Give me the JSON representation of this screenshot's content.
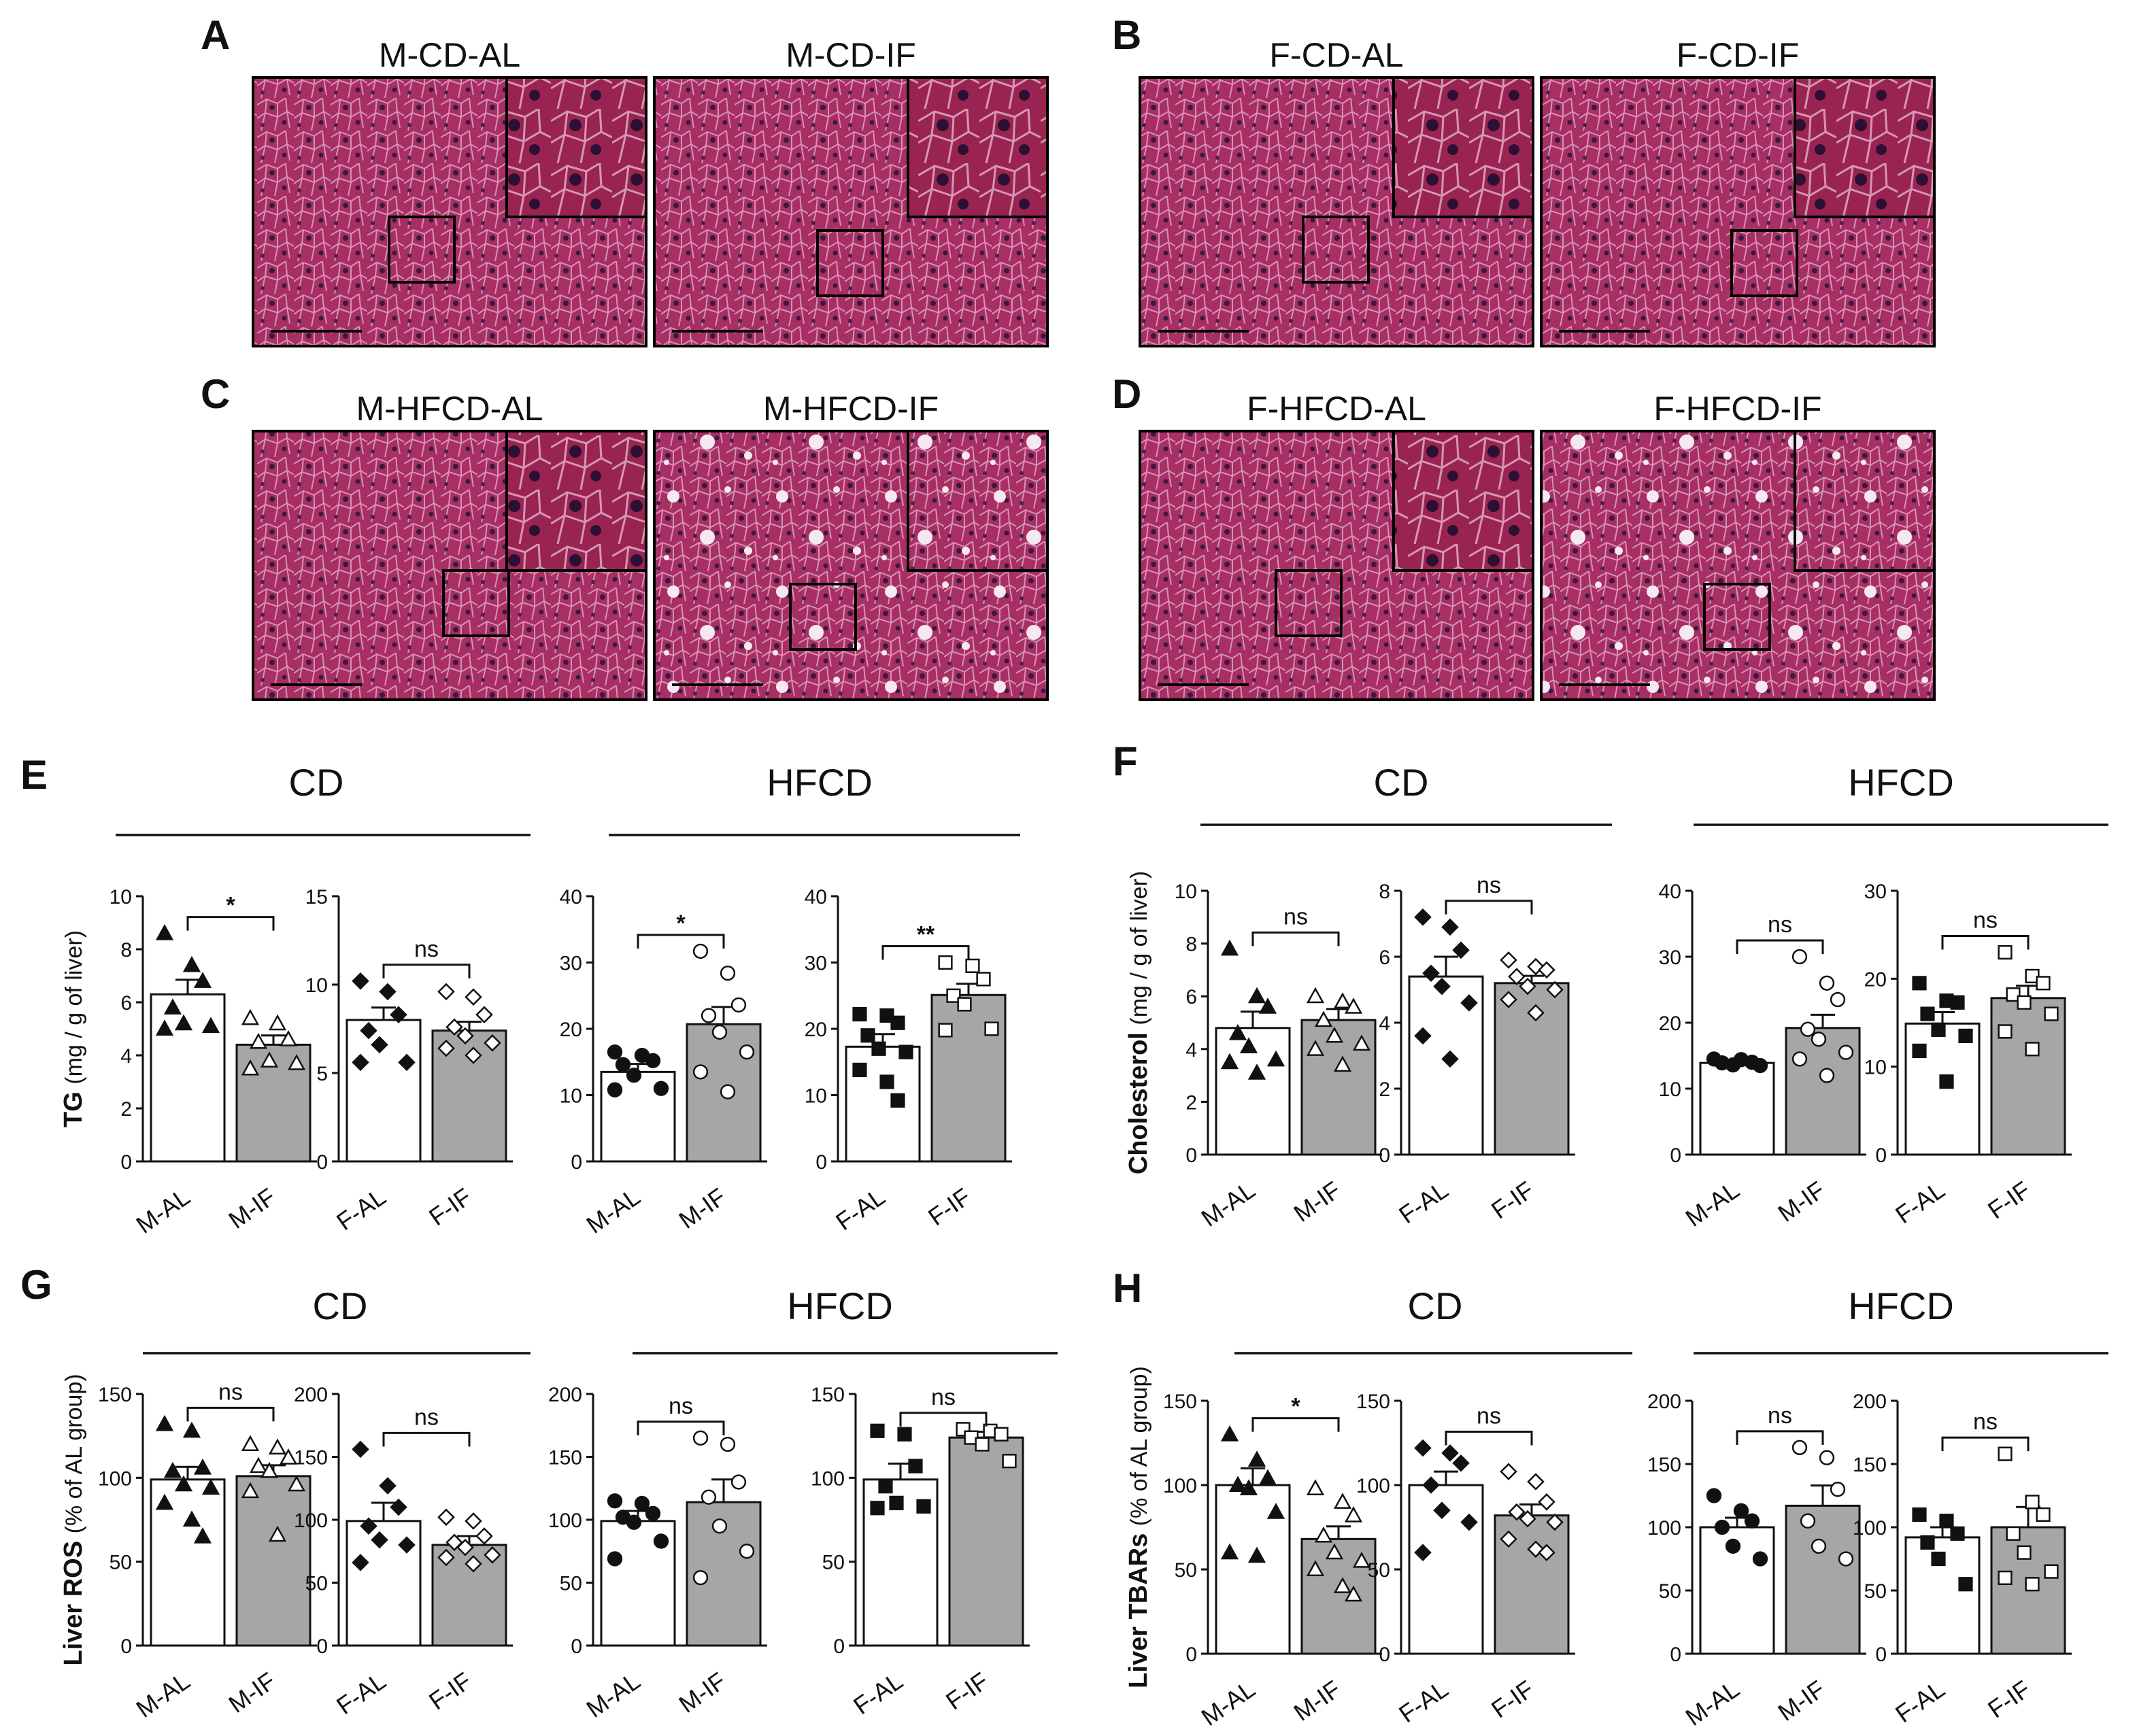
{
  "histology": {
    "panels": [
      {
        "letter": "A",
        "left_title": "M-CD-AL",
        "right_title": "M-CD-IF",
        "left_style": "plain",
        "right_style": "plain"
      },
      {
        "letter": "B",
        "left_title": "F-CD-AL",
        "right_title": "F-CD-IF",
        "left_style": "plain",
        "right_style": "plain"
      },
      {
        "letter": "C",
        "left_title": "M-HFCD-AL",
        "right_title": "M-HFCD-IF",
        "left_style": "plain",
        "right_style": "steatotic"
      },
      {
        "letter": "D",
        "left_title": "F-HFCD-AL",
        "right_title": "F-HFCD-IF",
        "left_style": "plain",
        "right_style": "steatotic"
      }
    ],
    "stain_color": "#b0306a"
  },
  "chart_data": [
    {
      "panel": "E",
      "type": "bar",
      "group": "CD",
      "ylabel_main": "TG",
      "ylabel_unit": "(mg / g of liver)",
      "categories": [
        "M-AL",
        "M-IF"
      ],
      "ylim": [
        0,
        10
      ],
      "yticks": [
        0,
        2,
        4,
        6,
        8,
        10
      ],
      "values": [
        6.3,
        4.4
      ],
      "sem": [
        0.55,
        0.35
      ],
      "points": [
        [
          8.6,
          7.4,
          6.8,
          5.8,
          5.2,
          5.1,
          5.0
        ],
        [
          5.4,
          5.2,
          4.6,
          4.5,
          3.8,
          3.7,
          3.5
        ]
      ],
      "markers": [
        "triangle-filled",
        "triangle-open"
      ],
      "significance": "*"
    },
    {
      "panel": "E",
      "type": "bar",
      "group": "CD",
      "categories": [
        "F-AL",
        "F-IF"
      ],
      "ylim": [
        0,
        15
      ],
      "yticks": [
        0,
        5,
        10,
        15
      ],
      "values": [
        8.0,
        7.4
      ],
      "sem": [
        0.7,
        0.5
      ],
      "points": [
        [
          10.2,
          9.6,
          8.3,
          7.4,
          6.6,
          5.6,
          5.6
        ],
        [
          9.6,
          9.3,
          8.3,
          7.6,
          7.1,
          6.7,
          6.4,
          6.0
        ]
      ],
      "markers": [
        "diamond-filled",
        "diamond-open"
      ],
      "significance": "ns"
    },
    {
      "panel": "E",
      "type": "bar",
      "group": "HFCD",
      "categories": [
        "M-AL",
        "M-IF"
      ],
      "ylim": [
        0,
        40
      ],
      "yticks": [
        0,
        10,
        20,
        30,
        40
      ],
      "values": [
        13.5,
        20.7
      ],
      "sem": [
        1.2,
        2.6
      ],
      "points": [
        [
          16.5,
          16.0,
          15.2,
          14.6,
          13.0,
          11.0,
          10.8
        ],
        [
          31.7,
          28.4,
          23.6,
          22.0,
          19.5,
          16.5,
          13.5,
          10.5
        ]
      ],
      "markers": [
        "circle-filled",
        "circle-open"
      ],
      "significance": "*"
    },
    {
      "panel": "E",
      "type": "bar",
      "group": "HFCD",
      "categories": [
        "F-AL",
        "F-IF"
      ],
      "ylim": [
        0,
        40
      ],
      "yticks": [
        0,
        10,
        20,
        30,
        40
      ],
      "values": [
        17.3,
        25.1
      ],
      "sem": [
        1.9,
        1.7
      ],
      "points": [
        [
          22.2,
          22.0,
          20.9,
          19.0,
          17.0,
          16.5,
          13.8,
          12.0,
          9.2
        ],
        [
          30.0,
          29.5,
          27.5,
          25.0,
          23.7,
          20.0,
          19.8
        ]
      ],
      "markers": [
        "square-filled",
        "square-open"
      ],
      "significance": "**"
    },
    {
      "panel": "F",
      "type": "bar",
      "group": "CD",
      "ylabel_main": "Cholesterol",
      "ylabel_unit": "(mg / g of liver)",
      "categories": [
        "M-AL",
        "M-IF"
      ],
      "ylim": [
        0,
        10
      ],
      "yticks": [
        0,
        2,
        4,
        6,
        8,
        10
      ],
      "values": [
        4.8,
        5.1
      ],
      "sem": [
        0.62,
        0.42
      ],
      "points": [
        [
          7.8,
          6.0,
          5.6,
          4.6,
          4.1,
          3.6,
          3.5,
          3.1
        ],
        [
          6.0,
          5.8,
          5.6,
          5.1,
          4.5,
          4.2,
          4.0,
          3.4
        ]
      ],
      "markers": [
        "triangle-filled",
        "triangle-open"
      ],
      "significance": "ns"
    },
    {
      "panel": "F",
      "type": "bar",
      "group": "CD",
      "categories": [
        "F-AL",
        "F-IF"
      ],
      "ylim": [
        0,
        8
      ],
      "yticks": [
        0,
        2,
        4,
        6,
        8
      ],
      "values": [
        5.4,
        5.2
      ],
      "sem": [
        0.6,
        0.22
      ],
      "points": [
        [
          7.2,
          6.9,
          6.2,
          5.5,
          5.1,
          4.6,
          3.6,
          2.9
        ],
        [
          5.9,
          5.7,
          5.6,
          5.4,
          5.1,
          5.0,
          4.7,
          4.3
        ]
      ],
      "markers": [
        "diamond-filled",
        "diamond-open"
      ],
      "significance": "ns"
    },
    {
      "panel": "F",
      "type": "bar",
      "group": "HFCD",
      "categories": [
        "M-AL",
        "M-IF"
      ],
      "ylim": [
        0,
        40
      ],
      "yticks": [
        0,
        10,
        20,
        30,
        40
      ],
      "values": [
        13.9,
        19.2
      ],
      "sem": [
        0.4,
        2.0
      ],
      "points": [
        [
          14.5,
          14.4,
          14.0,
          13.9,
          13.6,
          13.5
        ],
        [
          30.0,
          26.0,
          23.5,
          19.0,
          17.5,
          15.5,
          14.5,
          12.0
        ]
      ],
      "markers": [
        "circle-filled",
        "circle-open"
      ],
      "significance": "ns"
    },
    {
      "panel": "F",
      "type": "bar",
      "group": "HFCD",
      "categories": [
        "F-AL",
        "F-IF"
      ],
      "ylim": [
        0,
        30
      ],
      "yticks": [
        0,
        10,
        20,
        30
      ],
      "values": [
        14.9,
        17.8
      ],
      "sem": [
        1.3,
        1.4
      ],
      "points": [
        [
          19.5,
          17.5,
          17.3,
          16.0,
          14.2,
          13.5,
          11.8,
          8.3
        ],
        [
          23.0,
          20.3,
          19.5,
          18.2,
          17.3,
          16.0,
          14.0,
          12.0
        ]
      ],
      "markers": [
        "square-filled",
        "square-open"
      ],
      "significance": "ns"
    },
    {
      "panel": "G",
      "type": "bar",
      "group": "CD",
      "ylabel_main": "Liver ROS",
      "ylabel_unit": "(% of AL group)",
      "categories": [
        "M-AL",
        "M-IF"
      ],
      "ylim": [
        0,
        150
      ],
      "yticks": [
        0,
        50,
        100,
        150
      ],
      "values": [
        99,
        101
      ],
      "sem": [
        7.5,
        6.5
      ],
      "points": [
        [
          132,
          128,
          106,
          104,
          96,
          94,
          85,
          75,
          65
        ],
        [
          120,
          118,
          112,
          107,
          104,
          96,
          92,
          66
        ]
      ],
      "markers": [
        "triangle-filled",
        "triangle-open"
      ],
      "significance": "ns"
    },
    {
      "panel": "G",
      "type": "bar",
      "group": "CD",
      "categories": [
        "F-AL",
        "F-IF"
      ],
      "ylim": [
        0,
        200
      ],
      "yticks": [
        0,
        50,
        100,
        150,
        200
      ],
      "values": [
        99,
        80
      ],
      "sem": [
        14.5,
        7.0
      ],
      "points": [
        [
          156,
          127,
          110,
          95,
          84,
          80,
          66
        ],
        [
          102,
          99,
          87,
          82,
          78,
          72,
          70,
          65
        ]
      ],
      "markers": [
        "diamond-filled",
        "diamond-open"
      ],
      "significance": "ns"
    },
    {
      "panel": "G",
      "type": "bar",
      "group": "HFCD",
      "categories": [
        "M-AL",
        "M-IF"
      ],
      "ylim": [
        0,
        200
      ],
      "yticks": [
        0,
        50,
        100,
        150,
        200
      ],
      "values": [
        99,
        114
      ],
      "sem": [
        8.0,
        18.0
      ],
      "points": [
        [
          115,
          113,
          105,
          102,
          98,
          83,
          69
        ],
        [
          165,
          160,
          130,
          118,
          95,
          75,
          54
        ]
      ],
      "markers": [
        "circle-filled",
        "circle-open"
      ],
      "significance": "ns"
    },
    {
      "panel": "G",
      "type": "bar",
      "group": "HFCD",
      "categories": [
        "F-AL",
        "F-IF"
      ],
      "ylim": [
        0,
        150
      ],
      "yticks": [
        0,
        50,
        100,
        150
      ],
      "values": [
        99,
        124
      ],
      "sem": [
        9.5,
        3.5
      ],
      "points": [
        [
          128,
          126,
          107,
          95,
          85,
          83,
          82
        ],
        [
          129,
          128,
          126,
          124,
          120,
          110
        ]
      ],
      "markers": [
        "square-filled",
        "square-open"
      ],
      "significance": "ns"
    },
    {
      "panel": "H",
      "type": "bar",
      "group": "CD",
      "ylabel_main": "Liver TBARs",
      "ylabel_unit": "(% of AL group)",
      "categories": [
        "M-AL",
        "M-IF"
      ],
      "ylim": [
        0,
        150
      ],
      "yticks": [
        0,
        50,
        100,
        150
      ],
      "values": [
        100,
        68
      ],
      "sem": [
        10.0,
        7.5
      ],
      "points": [
        [
          130,
          115,
          104,
          100,
          98,
          84,
          60,
          58
        ],
        [
          98,
          90,
          82,
          70,
          60,
          55,
          50,
          40,
          35
        ]
      ],
      "markers": [
        "triangle-filled",
        "triangle-open"
      ],
      "significance": "*"
    },
    {
      "panel": "H",
      "type": "bar",
      "group": "CD",
      "categories": [
        "F-AL",
        "F-IF"
      ],
      "ylim": [
        0,
        150
      ],
      "yticks": [
        0,
        50,
        100,
        150
      ],
      "values": [
        100,
        82
      ],
      "sem": [
        8.0,
        6.5
      ],
      "points": [
        [
          122,
          119,
          113,
          100,
          85,
          78,
          60
        ],
        [
          108,
          102,
          90,
          84,
          80,
          78,
          68,
          62,
          60
        ]
      ],
      "markers": [
        "diamond-filled",
        "diamond-open"
      ],
      "significance": "ns"
    },
    {
      "panel": "H",
      "type": "bar",
      "group": "HFCD",
      "categories": [
        "M-AL",
        "M-IF"
      ],
      "ylim": [
        0,
        200
      ],
      "yticks": [
        0,
        50,
        100,
        150,
        200
      ],
      "values": [
        100,
        117
      ],
      "sem": [
        7.5,
        16.0
      ],
      "points": [
        [
          125,
          113,
          105,
          100,
          85,
          75
        ],
        [
          163,
          155,
          130,
          105,
          85,
          75
        ]
      ],
      "markers": [
        "circle-filled",
        "circle-open"
      ],
      "significance": "ns"
    },
    {
      "panel": "H",
      "type": "bar",
      "group": "HFCD",
      "categories": [
        "F-AL",
        "F-IF"
      ],
      "ylim": [
        0,
        200
      ],
      "yticks": [
        0,
        50,
        100,
        150,
        200
      ],
      "values": [
        92,
        100
      ],
      "sem": [
        8.0,
        16.0
      ],
      "points": [
        [
          110,
          105,
          95,
          88,
          75,
          55
        ],
        [
          158,
          120,
          110,
          95,
          80,
          65,
          60,
          55
        ]
      ],
      "markers": [
        "square-filled",
        "square-open"
      ],
      "significance": "ns"
    }
  ],
  "group_titles": [
    {
      "panel": "E",
      "cd": "CD",
      "hfcd": "HFCD"
    },
    {
      "panel": "F",
      "cd": "CD",
      "hfcd": "HFCD"
    },
    {
      "panel": "G",
      "cd": "CD",
      "hfcd": "HFCD"
    },
    {
      "panel": "H",
      "cd": "CD",
      "hfcd": "HFCD"
    }
  ]
}
